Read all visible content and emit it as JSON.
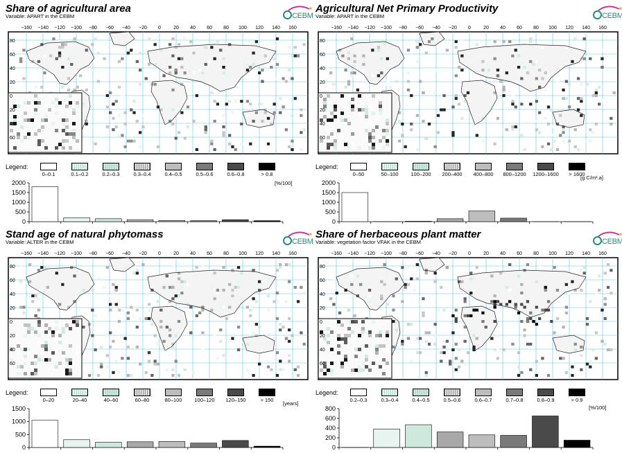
{
  "panels": [
    {
      "title": "Share of agricultural area",
      "subtitle": "Variable: APART in the CEBM",
      "logo": "CEBM",
      "legend_label": "Legend:",
      "unit": "[%/100]",
      "chart_data": {
        "type": "bar",
        "categories": [
          "0–0.1",
          "0.1–0.2",
          "0.2–0.3",
          "0.3–0.4",
          "0.4–0.5",
          "0.5–0.6",
          "0.6–0.8",
          "> 0.8"
        ],
        "values": [
          1800,
          200,
          150,
          100,
          60,
          50,
          100,
          50
        ],
        "yticks": [
          0,
          500,
          1000,
          1500,
          2000
        ],
        "ylim": [
          0,
          2000
        ]
      },
      "fills": [
        "#ffffff",
        "#e8f4f0",
        "#cfe8de",
        "#b8b8b8",
        "#bdbdbd",
        "#7a7a7a",
        "#4a4a4a",
        "#000000"
      ]
    },
    {
      "title": "Agricultural Net Primary Productivity",
      "subtitle": "Variable: APART in the CEBM",
      "logo": "CEBM",
      "legend_label": "Legend:",
      "unit": "[g C/m².a]",
      "chart_data": {
        "type": "bar",
        "categories": [
          "0–50",
          "50–100",
          "100–200",
          "200–400",
          "400–800",
          "800–1200",
          "1200–1600",
          "> 1600"
        ],
        "values": [
          1500,
          0,
          20,
          150,
          550,
          180,
          0,
          0
        ],
        "yticks": [
          0,
          500,
          1000,
          1500,
          2000
        ],
        "ylim": [
          0,
          2000
        ]
      },
      "fills": [
        "#ffffff",
        "#e8f4f0",
        "#cfe8de",
        "#a8a8a8",
        "#bdbdbd",
        "#7a7a7a",
        "#4a4a4a",
        "#000000"
      ]
    },
    {
      "title": "Stand age of natural phytomass",
      "subtitle": "Variable: ALTER in the CEBM",
      "logo": "CEBM",
      "legend_label": "Legend:",
      "unit": "[years]",
      "chart_data": {
        "type": "bar",
        "categories": [
          "0–20",
          "20–40",
          "40–60",
          "60–80",
          "80–100",
          "100–120",
          "120–150",
          "> 150"
        ],
        "values": [
          1050,
          300,
          200,
          220,
          230,
          170,
          270,
          50
        ],
        "yticks": [
          0,
          500,
          1000,
          1500
        ],
        "ylim": [
          0,
          1500
        ]
      },
      "fills": [
        "#ffffff",
        "#e8f4f0",
        "#cfe8de",
        "#a8a8a8",
        "#bdbdbd",
        "#7a7a7a",
        "#4a4a4a",
        "#000000"
      ]
    },
    {
      "title": "Share of herbaceous plant matter",
      "subtitle": "Variable: vegetation factor VFAK in the CEBM",
      "logo": "CEBM",
      "legend_label": "Legend:",
      "unit": "[%/100]",
      "chart_data": {
        "type": "bar",
        "categories": [
          "0.2–0.3",
          "0.3–0.4",
          "0.4–0.5",
          "0.5–0.6",
          "0.6–0.7",
          "0.7–0.8",
          "0.8–0.9",
          "> 0.9"
        ],
        "values": [
          0,
          380,
          470,
          320,
          260,
          250,
          650,
          150
        ],
        "yticks": [
          0,
          200,
          400,
          600,
          800
        ],
        "ylim": [
          0,
          800
        ]
      },
      "fills": [
        "#ffffff",
        "#e8f4f0",
        "#cfe8de",
        "#a8a8a8",
        "#bdbdbd",
        "#7a7a7a",
        "#4a4a4a",
        "#000000"
      ]
    }
  ],
  "map_axis": {
    "lon_labels": [
      "−160",
      "−140",
      "−120",
      "−100",
      "−80",
      "−60",
      "−40",
      "−20",
      "0",
      "20",
      "40",
      "60",
      "80",
      "100",
      "120",
      "140",
      "160"
    ],
    "lat_labels": [
      "80",
      "60",
      "40",
      "20",
      "0",
      "20",
      "40",
      "60"
    ]
  },
  "colors": {
    "grid": "#5fc3d8",
    "land_line": "#222222",
    "logo": "#2a8a7a",
    "logo_arc": "#c0409a"
  }
}
